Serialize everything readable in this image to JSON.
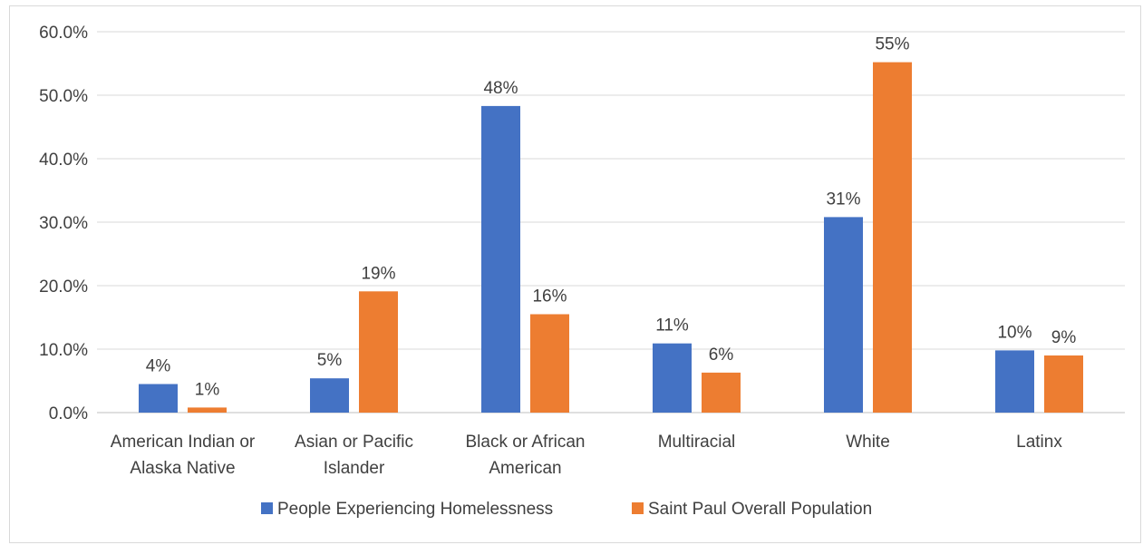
{
  "chart_data": {
    "type": "bar",
    "categories": [
      [
        "American Indian or",
        "Alaska Native"
      ],
      [
        "Asian or Pacific",
        "Islander"
      ],
      [
        "Black or African",
        "American"
      ],
      [
        "Multiracial"
      ],
      [
        "White"
      ],
      [
        "Latinx"
      ]
    ],
    "series": [
      {
        "name": "People Experiencing Homelessness",
        "color": "#4472C4",
        "values": [
          4.5,
          5.4,
          48.3,
          10.9,
          30.8,
          9.8
        ],
        "labels": [
          "4%",
          "5%",
          "48%",
          "11%",
          "31%",
          "10%"
        ]
      },
      {
        "name": "Saint Paul Overall Population",
        "color": "#ED7D31",
        "values": [
          0.8,
          19.1,
          15.5,
          6.3,
          55.2,
          9.0
        ],
        "labels": [
          "1%",
          "19%",
          "16%",
          "6%",
          "55%",
          "9%"
        ]
      }
    ],
    "yticks": [
      "0.0%",
      "10.0%",
      "20.0%",
      "30.0%",
      "40.0%",
      "50.0%",
      "60.0%"
    ],
    "ylim": [
      0,
      60
    ],
    "grid": true,
    "legend_position": "bottom",
    "title": "",
    "xlabel": "",
    "ylabel": ""
  }
}
